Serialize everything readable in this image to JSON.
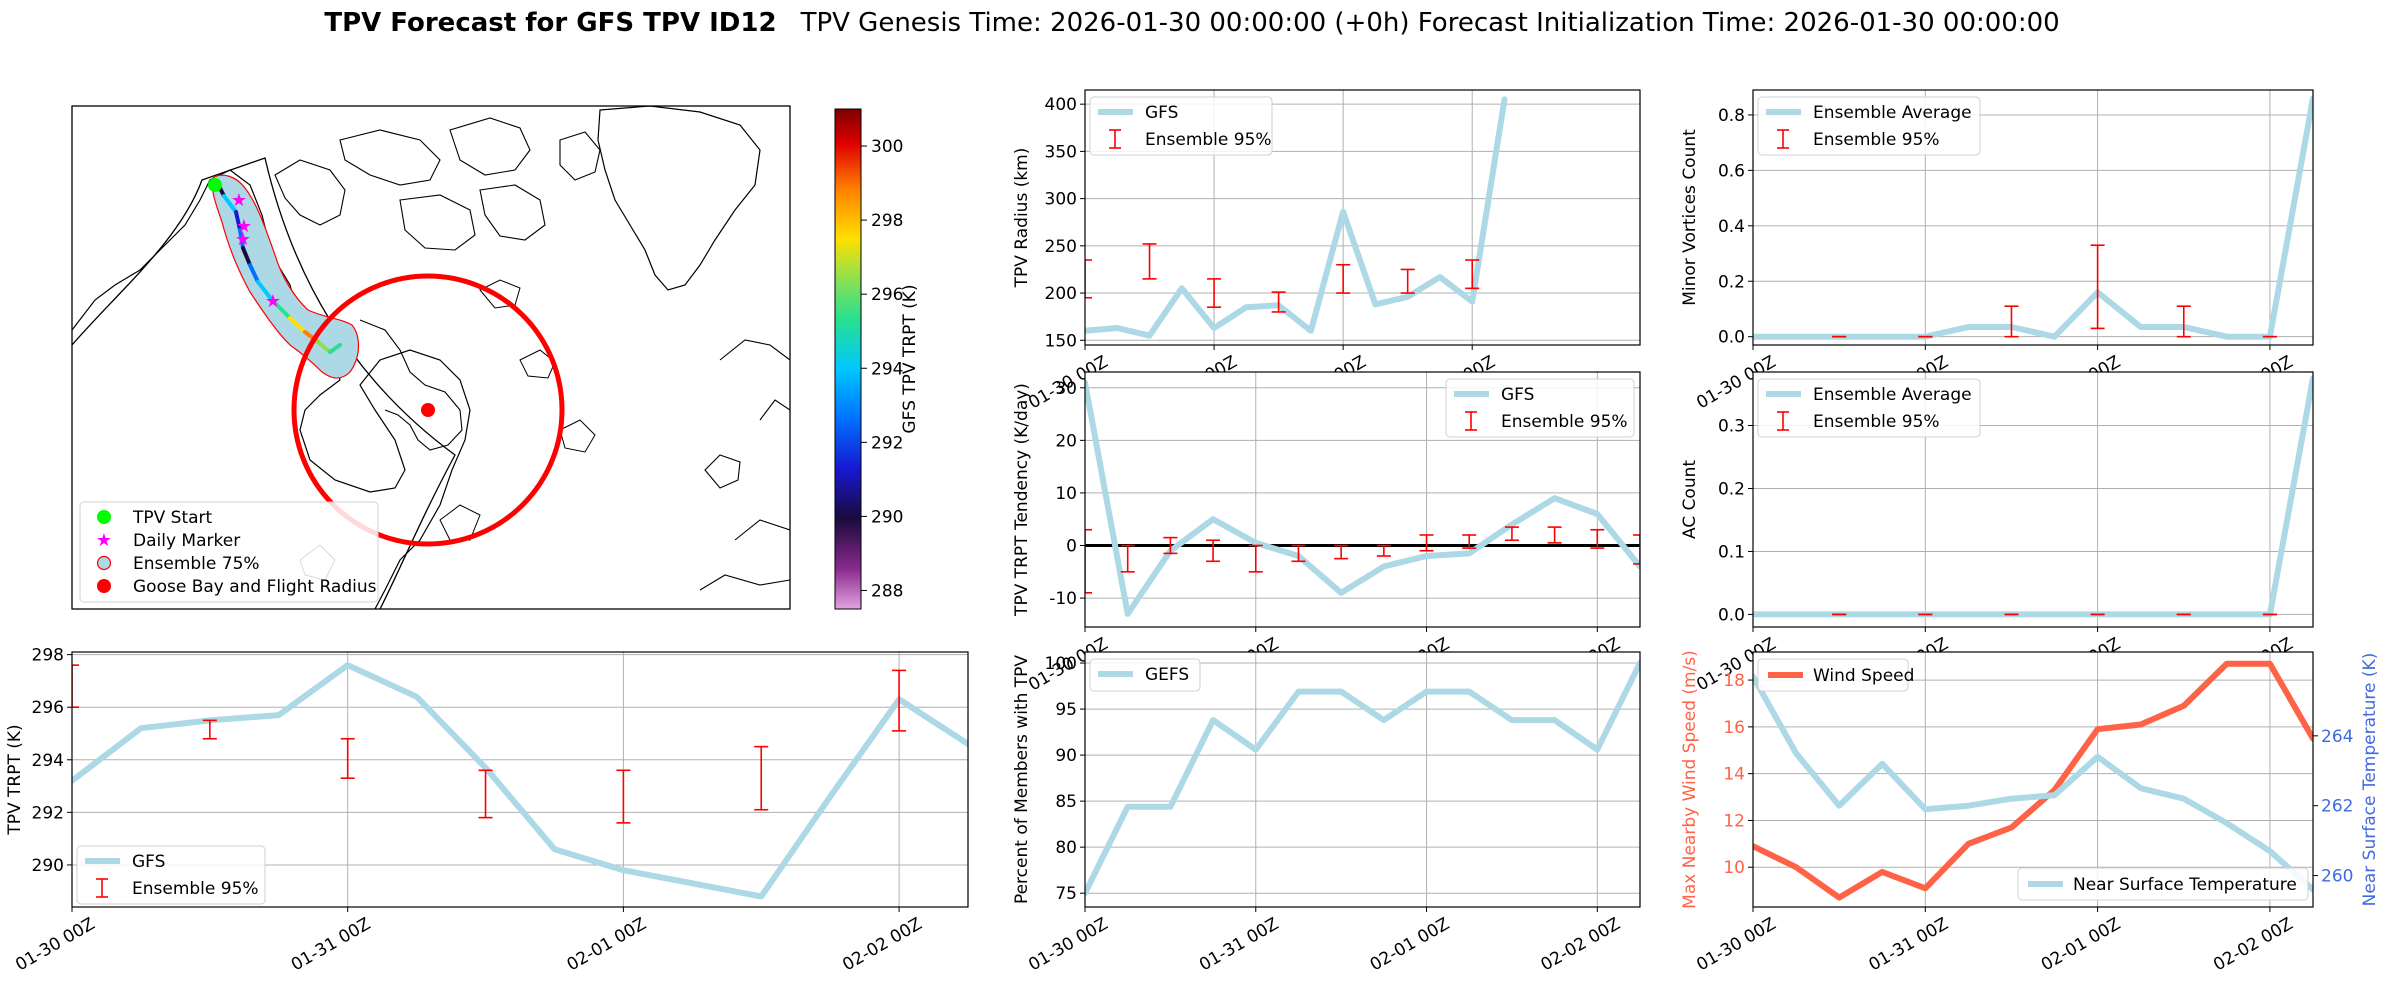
{
  "figure": {
    "title_bold": "TPV Forecast for GFS TPV ID12",
    "title_rest": "TPV Genesis Time: 2026-01-30 00:00:00 (+0h)   Forecast Initialization Time: 2026-01-30 00:00:00"
  },
  "colors": {
    "gfs_line": "#add8e6",
    "ensemble": "#ff0000",
    "wind": "#ff6347",
    "temp_axis": "#4169e1",
    "zero_line": "#000000",
    "grid": "#b0b0b0"
  },
  "time_labels": [
    "01-30 00Z",
    "01-31 00Z",
    "02-01 00Z",
    "02-02 00Z"
  ],
  "map": {
    "colorbar_label": "GFS TPV TRPT (K)",
    "colorbar_ticks": [
      "288",
      "290",
      "292",
      "294",
      "296",
      "298",
      "300"
    ],
    "colorbar_range": [
      287.5,
      301
    ],
    "legend": [
      "TPV Start",
      "Daily Marker",
      "Ensemble 75%",
      "Goose Bay and Flight Radius"
    ]
  },
  "chart_data": [
    {
      "id": "radius",
      "type": "line",
      "ylabel": "TPV Radius (km)",
      "ylim": [
        145,
        415
      ],
      "yticks": [
        150,
        200,
        250,
        300,
        350,
        400
      ],
      "xlim": [
        0,
        4.3
      ],
      "legend_pos": "top-left",
      "series": [
        {
          "name": "GFS",
          "kind": "line",
          "x": [
            0,
            0.25,
            0.5,
            0.75,
            1,
            1.25,
            1.5,
            1.75,
            2,
            2.25,
            2.5,
            2.75,
            3,
            3.25
          ],
          "y": [
            160,
            163,
            155,
            205,
            163,
            185,
            187,
            160,
            286,
            188,
            196,
            217,
            191,
            405
          ]
        }
      ],
      "errorbars": {
        "name": "Ensemble 95%",
        "x": [
          0,
          0.5,
          1,
          1.5,
          2,
          2.5,
          3
        ],
        "low": [
          195,
          215,
          185,
          180,
          200,
          200,
          205
        ],
        "high": [
          235,
          252,
          215,
          201,
          230,
          225,
          235
        ]
      }
    },
    {
      "id": "minor",
      "type": "line",
      "ylabel": "Minor Vortices Count",
      "ylim": [
        -0.03,
        0.89
      ],
      "yticks": [
        0.0,
        0.2,
        0.4,
        0.6,
        0.8
      ],
      "ytick_labels": [
        "0.0",
        "0.2",
        "0.4",
        "0.6",
        "0.8"
      ],
      "xlim": [
        0,
        3.25
      ],
      "legend_pos": "top-left",
      "series": [
        {
          "name": "Ensemble Average",
          "kind": "line",
          "x": [
            0,
            0.25,
            0.5,
            0.75,
            1,
            1.25,
            1.5,
            1.75,
            2,
            2.25,
            2.5,
            2.75,
            3,
            3.25
          ],
          "y": [
            0,
            0,
            0,
            0,
            0,
            0.035,
            0.035,
            0,
            0.16,
            0.035,
            0.035,
            0,
            0,
            0.86
          ]
        }
      ],
      "errorbars": {
        "name": "Ensemble 95%",
        "x": [
          0.5,
          1,
          1.5,
          2,
          2.5,
          3
        ],
        "low": [
          0,
          0,
          0,
          0.03,
          0,
          0
        ],
        "high": [
          0,
          0,
          0.11,
          0.33,
          0.11,
          0
        ]
      }
    },
    {
      "id": "tendency",
      "type": "line",
      "ylabel": "TPV TRPT Tendency (K/day)",
      "ylim": [
        -15.5,
        33
      ],
      "yticks": [
        -10,
        0,
        10,
        20,
        30
      ],
      "xlim": [
        0,
        3.25
      ],
      "zero_line": true,
      "legend_pos": "top-right",
      "series": [
        {
          "name": "GFS",
          "kind": "line",
          "x": [
            0,
            0.25,
            0.5,
            0.75,
            1,
            1.25,
            1.5,
            1.75,
            2,
            2.25,
            2.5,
            2.75,
            3,
            3.25
          ],
          "y": [
            31,
            -13,
            -1,
            5,
            0.5,
            -2,
            -9,
            -4,
            -2,
            -1.5,
            4,
            9,
            6,
            -4
          ]
        }
      ],
      "errorbars": {
        "name": "Ensemble 95%",
        "x": [
          0,
          0.25,
          0.5,
          0.75,
          1,
          1.25,
          1.5,
          1.75,
          2,
          2.25,
          2.5,
          2.75,
          3,
          3.25
        ],
        "low": [
          -9,
          -5,
          -1.5,
          -3,
          -5,
          -3,
          -2.5,
          -2,
          -1,
          -0.5,
          1,
          0.5,
          -0.5,
          -3.5
        ],
        "high": [
          3,
          0,
          1.5,
          1,
          0,
          0,
          0,
          0,
          2,
          2,
          3.5,
          3.5,
          3,
          2
        ]
      }
    },
    {
      "id": "ac",
      "type": "line",
      "ylabel": "AC Count",
      "ylim": [
        -0.02,
        0.385
      ],
      "yticks": [
        0.0,
        0.1,
        0.2,
        0.3
      ],
      "ytick_labels": [
        "0.0",
        "0.1",
        "0.2",
        "0.3"
      ],
      "xlim": [
        0,
        3.25
      ],
      "legend_pos": "top-left",
      "series": [
        {
          "name": "Ensemble Average",
          "kind": "line",
          "x": [
            0,
            0.25,
            0.5,
            0.75,
            1,
            1.25,
            1.5,
            1.75,
            2,
            2.25,
            2.5,
            2.75,
            3,
            3.25
          ],
          "y": [
            0,
            0,
            0,
            0,
            0,
            0,
            0,
            0,
            0,
            0,
            0,
            0,
            0,
            0.375
          ]
        }
      ],
      "errorbars": {
        "name": "Ensemble 95%",
        "x": [
          0.5,
          1,
          1.5,
          2,
          2.5,
          3
        ],
        "low": [
          0,
          0,
          0,
          0,
          0,
          0
        ],
        "high": [
          0,
          0,
          0,
          0,
          0,
          0
        ]
      }
    },
    {
      "id": "trpt",
      "type": "line",
      "ylabel": "TPV TRPT (K)",
      "ylim": [
        288.4,
        298.1
      ],
      "yticks": [
        290,
        292,
        294,
        296,
        298
      ],
      "xlim": [
        0,
        3.25
      ],
      "legend_pos": "bottom-left",
      "series": [
        {
          "name": "GFS",
          "kind": "line",
          "x": [
            0,
            0.25,
            0.5,
            0.75,
            1,
            1.25,
            1.5,
            1.75,
            2,
            2.25,
            2.5,
            2.75,
            3,
            3.25
          ],
          "y": [
            293.2,
            295.2,
            295.5,
            295.7,
            297.6,
            296.4,
            293.7,
            290.6,
            289.8,
            289.3,
            288.8,
            292.6,
            296.3,
            294.6
          ]
        }
      ],
      "errorbars": {
        "name": "Ensemble 95%",
        "x": [
          0,
          0.5,
          1,
          1.5,
          2,
          2.5,
          3
        ],
        "low": [
          296,
          294.8,
          293.3,
          291.8,
          291.6,
          292.1,
          295.1
        ],
        "high": [
          297.6,
          295.5,
          294.8,
          293.6,
          293.6,
          294.5,
          297.4
        ]
      }
    },
    {
      "id": "members",
      "type": "line",
      "ylabel": "Percent of Members with TPV",
      "ylim": [
        73.5,
        101.2
      ],
      "yticks": [
        75,
        80,
        85,
        90,
        95,
        100
      ],
      "xlim": [
        0,
        3.25
      ],
      "legend_pos": "top-left",
      "series": [
        {
          "name": "GEFS",
          "kind": "line",
          "x": [
            0,
            0.25,
            0.5,
            0.75,
            1,
            1.25,
            1.5,
            1.75,
            2,
            2.25,
            2.5,
            2.75,
            3,
            3.25
          ],
          "y": [
            75,
            84.4,
            84.4,
            93.8,
            90.6,
            96.9,
            96.9,
            93.8,
            96.9,
            96.9,
            93.8,
            93.8,
            90.6,
            100
          ]
        }
      ]
    },
    {
      "id": "wind_temp",
      "type": "line",
      "ylabel": "Max Nearby Wind Speed (m/s)",
      "ylabel_right": "Near Surface Temperature (K)",
      "ylim": [
        8.3,
        19.2
      ],
      "yticks": [
        10,
        12,
        14,
        16,
        18
      ],
      "ylim_right": [
        259.1,
        266.4
      ],
      "yticks_right": [
        260,
        262,
        264
      ],
      "xlim": [
        0,
        3.25
      ],
      "series": [
        {
          "name": "Wind Speed",
          "kind": "line",
          "axis": "left",
          "x": [
            0,
            0.25,
            0.5,
            0.75,
            1,
            1.25,
            1.5,
            1.75,
            2,
            2.25,
            2.5,
            2.75,
            3,
            3.25
          ],
          "y": [
            10.9,
            10,
            8.7,
            9.8,
            9.1,
            11,
            11.7,
            13.3,
            15.9,
            16.1,
            16.9,
            18.7,
            18.7,
            15.5
          ]
        },
        {
          "name": "Near Surface Temperature",
          "kind": "line",
          "axis": "right",
          "x": [
            0,
            0.25,
            0.5,
            0.75,
            1,
            1.25,
            1.5,
            1.75,
            2,
            2.25,
            2.5,
            2.75,
            3,
            3.25
          ],
          "y": [
            265.7,
            263.5,
            262.0,
            263.2,
            261.9,
            262.0,
            262.2,
            262.3,
            263.4,
            262.5,
            262.2,
            261.5,
            260.7,
            259.6
          ]
        }
      ]
    }
  ]
}
